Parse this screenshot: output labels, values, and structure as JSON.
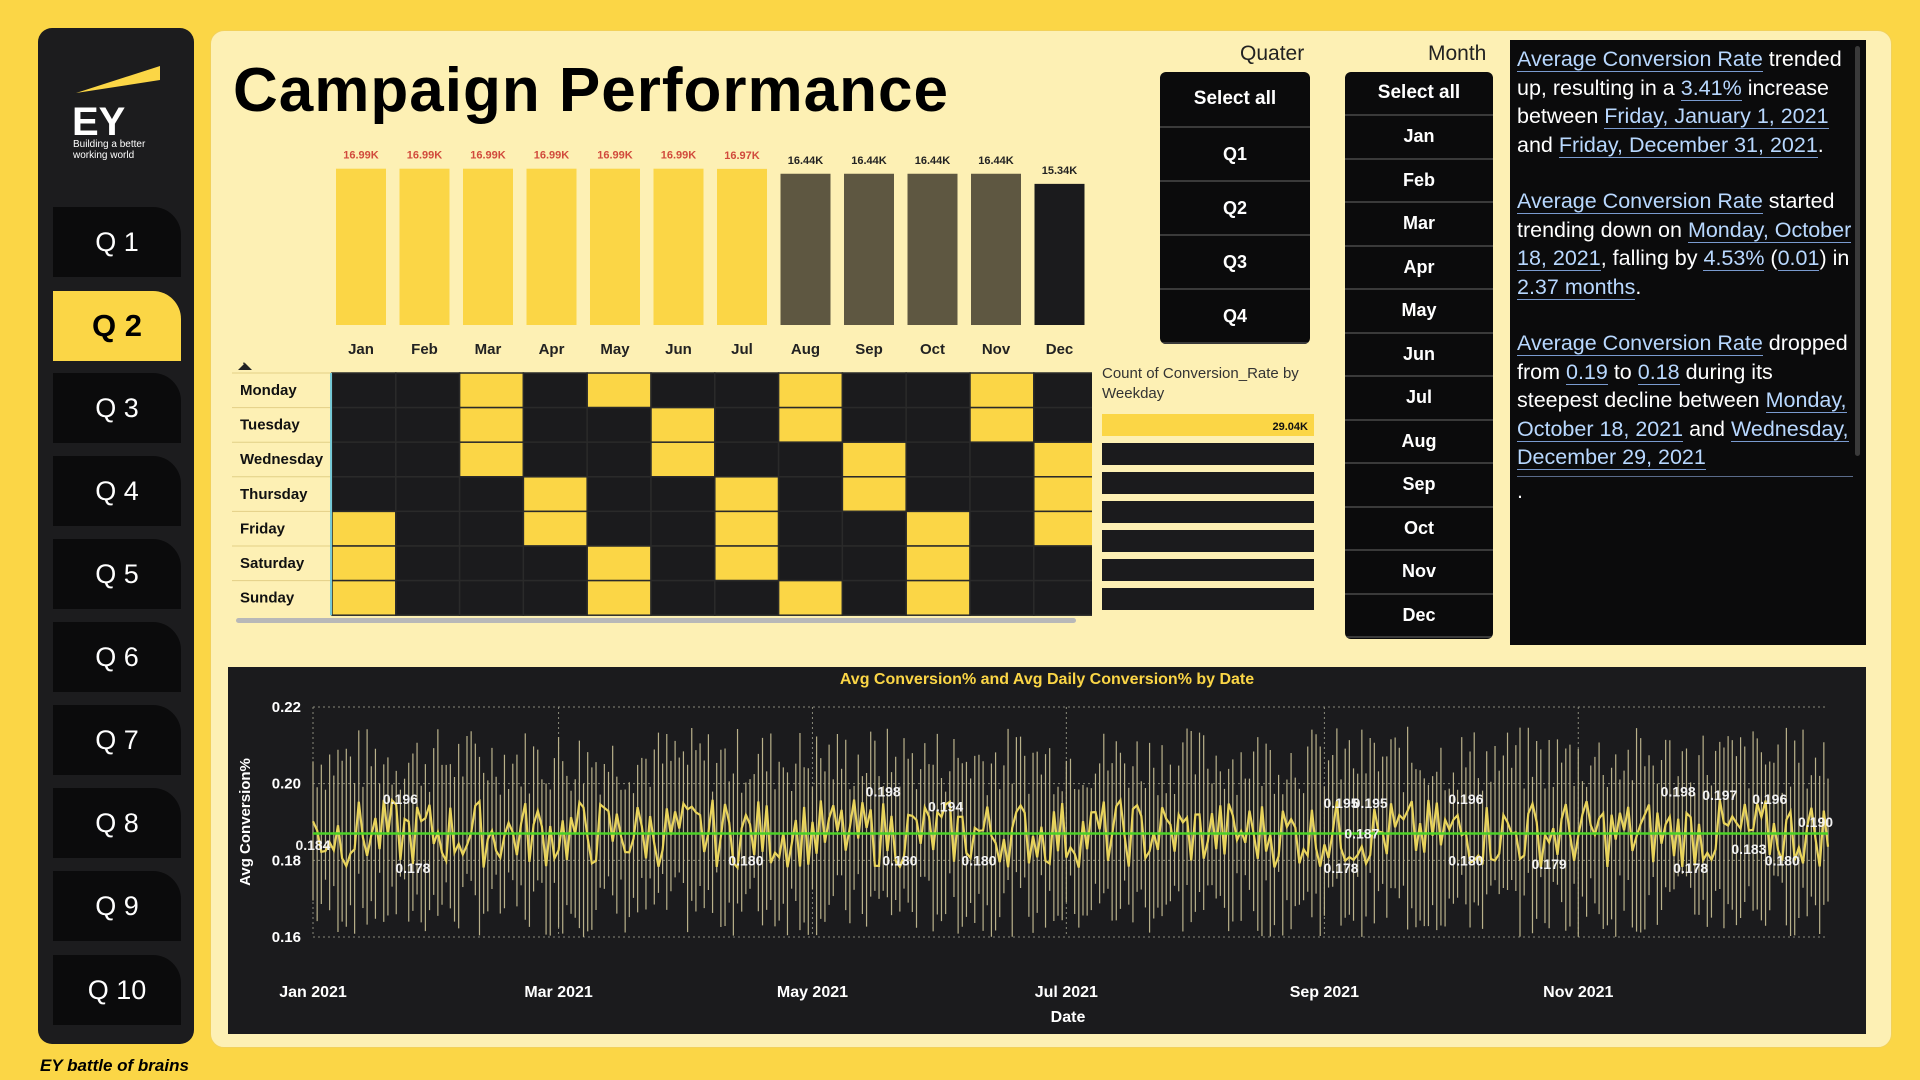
{
  "brand": {
    "logo_text": "EY",
    "tagline": "Building a better working world",
    "footer": "EY battle of brains"
  },
  "nav": {
    "items": [
      "Q 1",
      "Q 2",
      "Q 3",
      "Q 4",
      "Q 5",
      "Q 6",
      "Q 7",
      "Q 8",
      "Q 9",
      "Q 10"
    ],
    "active_index": 1
  },
  "page": {
    "title": "Campaign Performance"
  },
  "colors": {
    "yellow": "#fbd646",
    "olive": "#5e5741",
    "dark": "#1b1b1d",
    "green": "#4bd126"
  },
  "quarter_slicer": {
    "title": "Quater",
    "options": [
      "Select all",
      "Q1",
      "Q2",
      "Q3",
      "Q4"
    ]
  },
  "month_slicer": {
    "title": "Month",
    "options": [
      "Select all",
      "Jan",
      "Feb",
      "Mar",
      "Apr",
      "May",
      "Jun",
      "Jul",
      "Aug",
      "Sep",
      "Oct",
      "Nov",
      "Dec"
    ]
  },
  "narrative": {
    "p1": [
      "Average Conversion Rate",
      " trended up, resulting in a ",
      "3.41%",
      " increase between ",
      "Friday, January 1, 2021",
      " and ",
      "Friday, December 31, 2021",
      "."
    ],
    "p2": [
      "Average Conversion Rate",
      " started trending down on ",
      "Monday, October 18, 2021",
      ", falling by ",
      "4.53%",
      " (",
      "0.01",
      ") in ",
      "2.37 months",
      "."
    ],
    "p3": [
      "Average Conversion Rate",
      " dropped from ",
      "0.19",
      " to ",
      "0.18",
      " during its steepest decline between ",
      "Monday, October 18, 2021",
      " and ",
      "Wednesday, December 29, 2021"
    ],
    "p4": "."
  },
  "chart_data": [
    {
      "type": "bar",
      "categories": [
        "Jan",
        "Feb",
        "Mar",
        "Apr",
        "May",
        "Jun",
        "Jul",
        "Aug",
        "Sep",
        "Oct",
        "Nov",
        "Dec"
      ],
      "values": [
        16990,
        16990,
        16990,
        16990,
        16990,
        16990,
        16970,
        16440,
        16440,
        16440,
        16440,
        15340
      ],
      "data_labels": [
        "16.99K",
        "16.99K",
        "16.99K",
        "16.99K",
        "16.99K",
        "16.99K",
        "16.97K",
        "16.44K",
        "16.44K",
        "16.44K",
        "16.44K",
        "15.34K"
      ],
      "bar_colors": [
        "#fbd646",
        "#fbd646",
        "#fbd646",
        "#fbd646",
        "#fbd646",
        "#fbd646",
        "#fbd646",
        "#5e5741",
        "#5e5741",
        "#5e5741",
        "#5e5741",
        "#1b1b1d"
      ]
    },
    {
      "type": "heatmap",
      "rows": [
        "Monday",
        "Tuesday",
        "Wednesday",
        "Thursday",
        "Friday",
        "Saturday",
        "Sunday"
      ],
      "columns": [
        "Jan",
        "Feb",
        "Mar",
        "Apr",
        "May",
        "Jun",
        "Jul",
        "Aug",
        "Sep",
        "Oct",
        "Nov",
        "Dec"
      ],
      "highlight": [
        [
          0,
          0,
          1,
          0,
          1,
          0,
          0,
          1,
          0,
          0,
          1,
          0
        ],
        [
          0,
          0,
          1,
          0,
          0,
          1,
          0,
          1,
          0,
          0,
          1,
          0
        ],
        [
          0,
          0,
          1,
          0,
          0,
          1,
          0,
          0,
          1,
          0,
          0,
          1
        ],
        [
          0,
          0,
          0,
          1,
          0,
          0,
          1,
          0,
          1,
          0,
          0,
          1
        ],
        [
          1,
          0,
          0,
          1,
          0,
          0,
          1,
          0,
          0,
          1,
          0,
          1
        ],
        [
          1,
          0,
          0,
          0,
          1,
          0,
          1,
          0,
          0,
          1,
          0,
          0
        ],
        [
          1,
          0,
          0,
          0,
          1,
          0,
          0,
          1,
          0,
          1,
          0,
          0
        ]
      ],
      "sort_indicator": "."
    },
    {
      "type": "bar",
      "orientation": "horizontal",
      "title": "Count of Conversion_Rate by Weekday",
      "values": [
        29040,
        0,
        0,
        0,
        0,
        0,
        0
      ],
      "data_labels": [
        "29.04K"
      ]
    },
    {
      "type": "line",
      "title": "Avg Conversion% and Avg Daily Conversion% by Date",
      "xlabel": "Date",
      "ylabel": "Avg Conversion%",
      "ylim": [
        0.16,
        0.22
      ],
      "yticks": [
        "0.22",
        "0.20",
        "0.18",
        "0.16"
      ],
      "xticks": [
        "Jan 2021",
        "Mar 2021",
        "May 2021",
        "Jul 2021",
        "Sep 2021",
        "Nov 2021"
      ],
      "average_line": 0.187,
      "annotations": [
        {
          "date": "2021-01-01",
          "value": 0.184,
          "label": "0.184"
        },
        {
          "date": "2021-01-22",
          "value": 0.196,
          "label": "0.196"
        },
        {
          "date": "2021-01-25",
          "value": 0.178,
          "label": "0.178"
        },
        {
          "date": "2021-04-15",
          "value": 0.18,
          "label": "0.180"
        },
        {
          "date": "2021-05-18",
          "value": 0.198,
          "label": "0.198"
        },
        {
          "date": "2021-05-22",
          "value": 0.18,
          "label": "0.180"
        },
        {
          "date": "2021-06-02",
          "value": 0.194,
          "label": "0.194"
        },
        {
          "date": "2021-06-10",
          "value": 0.18,
          "label": "0.180"
        },
        {
          "date": "2021-09-05",
          "value": 0.195,
          "label": "0.195"
        },
        {
          "date": "2021-09-05",
          "value": 0.178,
          "label": "0.178"
        },
        {
          "date": "2021-09-12",
          "value": 0.195,
          "label": "0.195"
        },
        {
          "date": "2021-09-10",
          "value": 0.187,
          "label": "0.187"
        },
        {
          "date": "2021-10-05",
          "value": 0.196,
          "label": "0.196"
        },
        {
          "date": "2021-10-05",
          "value": 0.18,
          "label": "0.180"
        },
        {
          "date": "2021-10-25",
          "value": 0.179,
          "label": "0.179"
        },
        {
          "date": "2021-11-25",
          "value": 0.198,
          "label": "0.198"
        },
        {
          "date": "2021-11-28",
          "value": 0.178,
          "label": "0.178"
        },
        {
          "date": "2021-12-05",
          "value": 0.197,
          "label": "0.197"
        },
        {
          "date": "2021-12-12",
          "value": 0.183,
          "label": "0.183"
        },
        {
          "date": "2021-12-17",
          "value": 0.196,
          "label": "0.196"
        },
        {
          "date": "2021-12-20",
          "value": 0.18,
          "label": "0.180"
        },
        {
          "date": "2021-12-28",
          "value": 0.19,
          "label": "0.190"
        }
      ]
    }
  ]
}
